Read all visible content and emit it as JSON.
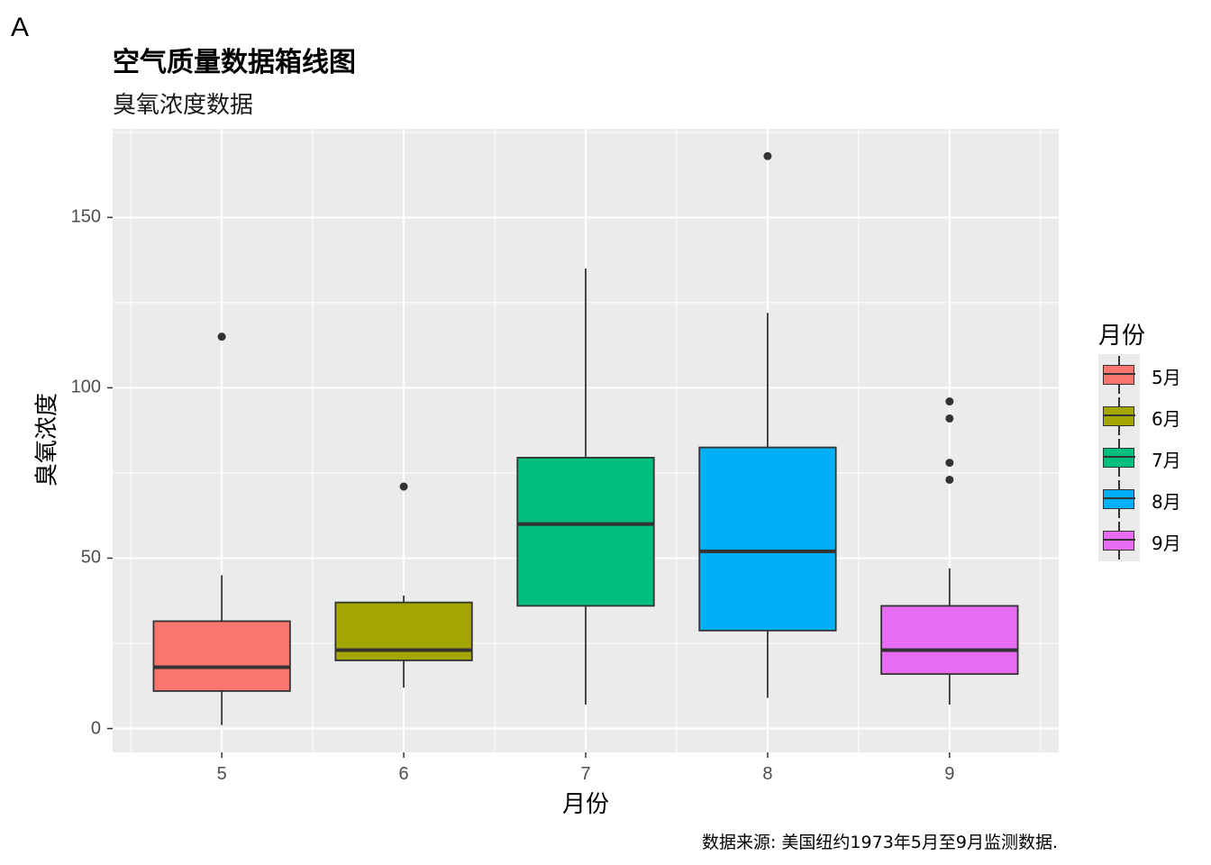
{
  "panel_tag": "A",
  "chart_data": {
    "type": "box",
    "title": "空气质量数据箱线图",
    "subtitle": "臭氧浓度数据",
    "xlabel": "月份",
    "ylabel": "臭氧浓度",
    "caption": "数据来源: 美国纽约1973年5月至9月监测数据.",
    "ylim": [
      -7,
      176
    ],
    "xlim": [
      4.4,
      9.6
    ],
    "y_ticks": [
      0,
      50,
      100,
      150
    ],
    "y_tick_labels": [
      "0",
      "50",
      "100",
      "150"
    ],
    "categories": [
      "5",
      "6",
      "7",
      "8",
      "9"
    ],
    "grid": true,
    "legend": {
      "title": "月份",
      "position": "right",
      "labels": [
        "5月",
        "6月",
        "7月",
        "8月",
        "9月"
      ]
    },
    "series": [
      {
        "name": "5月",
        "x": 5,
        "color": "#F8766D",
        "min": 1,
        "q1": 11,
        "median": 18,
        "q3": 31.5,
        "max": 45,
        "outliers": [
          115
        ]
      },
      {
        "name": "6月",
        "x": 6,
        "color": "#A3A500",
        "min": 12,
        "q1": 20,
        "median": 23,
        "q3": 37,
        "max": 39,
        "outliers": [
          71
        ]
      },
      {
        "name": "7月",
        "x": 7,
        "color": "#00BF7D",
        "min": 7,
        "q1": 36,
        "median": 60,
        "q3": 79.5,
        "max": 135,
        "outliers": []
      },
      {
        "name": "8月",
        "x": 8,
        "color": "#00B0F6",
        "min": 9,
        "q1": 28.75,
        "median": 52,
        "q3": 82.5,
        "max": 122,
        "outliers": [
          168
        ]
      },
      {
        "name": "9月",
        "x": 9,
        "color": "#E76BF3",
        "min": 7,
        "q1": 16,
        "median": 23,
        "q3": 36,
        "max": 47,
        "outliers": [
          73,
          78,
          91,
          96
        ]
      }
    ]
  }
}
